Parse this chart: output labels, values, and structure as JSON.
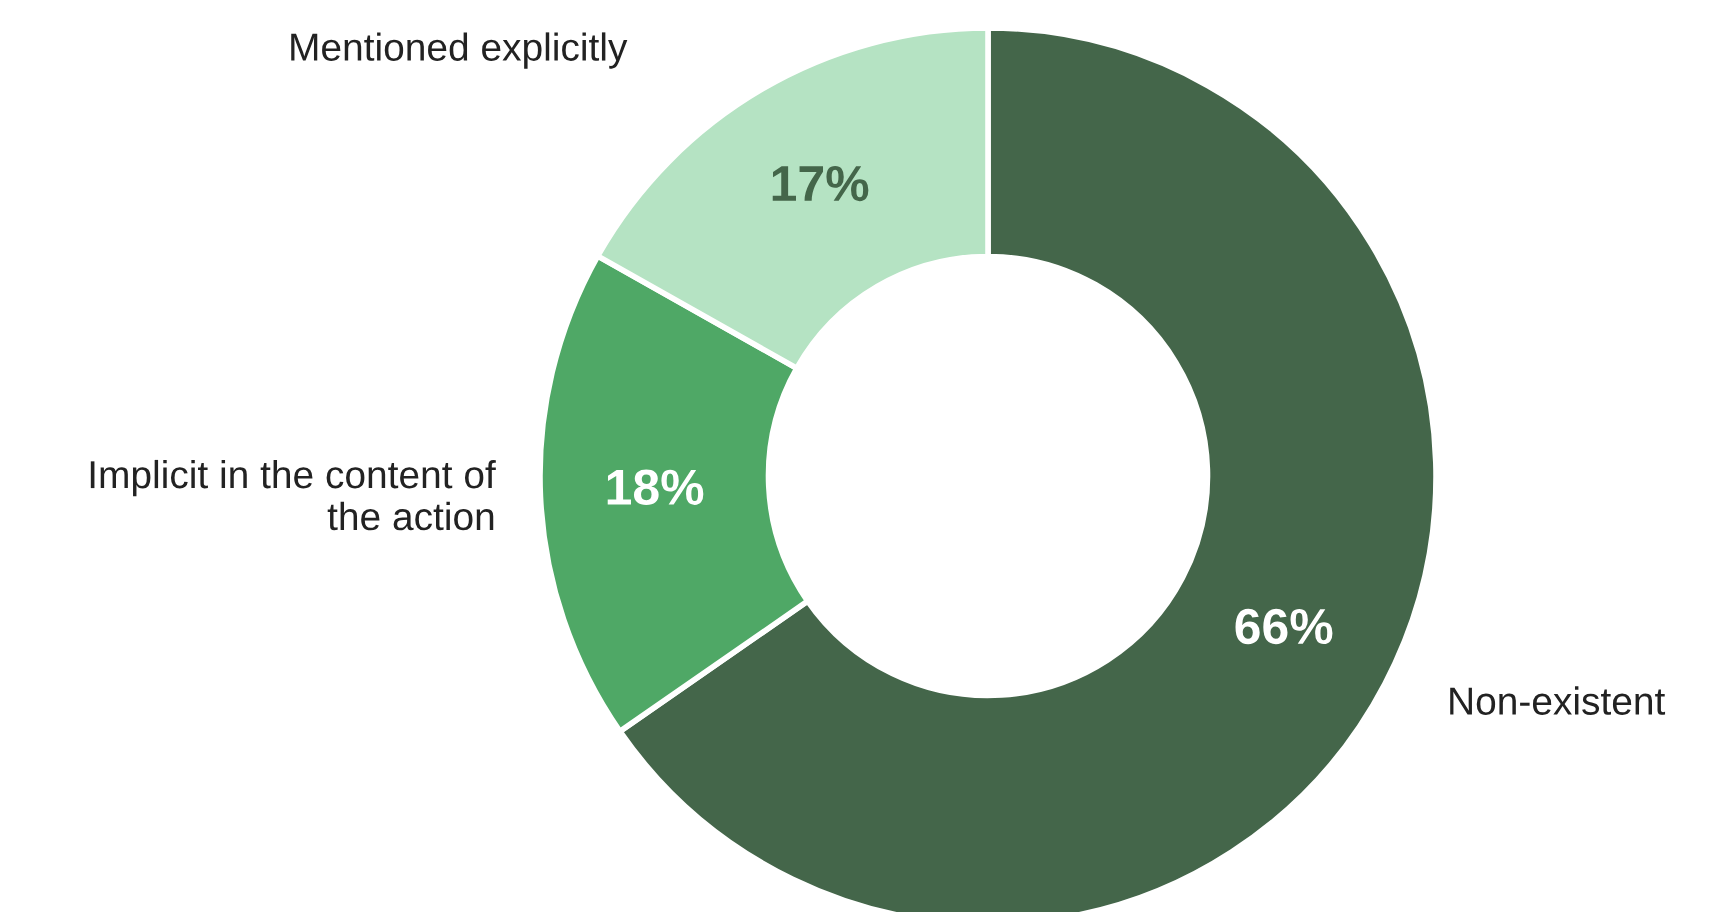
{
  "chart_data": {
    "type": "donut",
    "categories": [
      "Non-existent",
      "Implicit in the content of the action",
      "Mentioned explicitly"
    ],
    "values": [
      66,
      18,
      17
    ],
    "colors": [
      "#44664a",
      "#4fa866",
      "#b5e3c3"
    ],
    "value_labels": [
      "66%",
      "18%",
      "17%"
    ],
    "legend": false
  }
}
